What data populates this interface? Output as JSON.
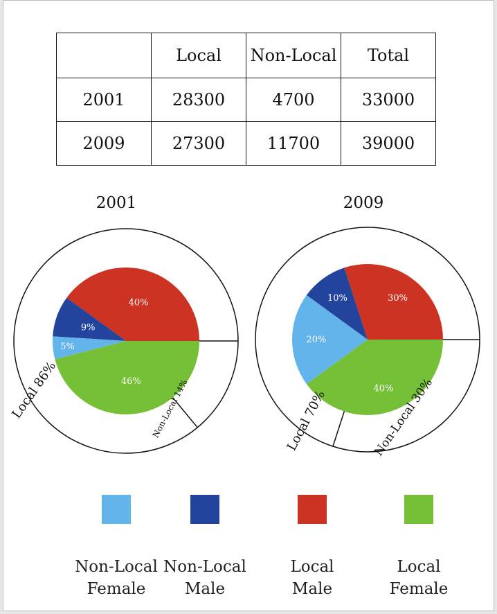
{
  "table": {
    "headers": [
      "",
      "Local",
      "Non-Local",
      "Total"
    ],
    "rows": [
      {
        "year": "2001",
        "local": "28300",
        "non_local": "4700",
        "total": "33000"
      },
      {
        "year": "2009",
        "local": "27300",
        "non_local": "11700",
        "total": "39000"
      }
    ]
  },
  "chart_data": [
    {
      "type": "pie",
      "title": "2001",
      "slices": [
        {
          "label": "40%",
          "category": "Local Male",
          "value": 40,
          "color": "#cc3322"
        },
        {
          "label": "9%",
          "category": "Non-Local Male",
          "value": 9,
          "color": "#22449c"
        },
        {
          "label": "5%",
          "category": "Non-Local Female",
          "value": 5,
          "color": "#62b4ea"
        },
        {
          "label": "46%",
          "category": "Local Female",
          "value": 46,
          "color": "#76c038"
        }
      ],
      "groups": [
        {
          "label": "Local 86%",
          "value": 86
        },
        {
          "label": "Non-Local 14%",
          "value": 14
        }
      ]
    },
    {
      "type": "pie",
      "title": "2009",
      "slices": [
        {
          "label": "30%",
          "category": "Local Male",
          "value": 30,
          "color": "#cc3322"
        },
        {
          "label": "10%",
          "category": "Non-Local Male",
          "value": 10,
          "color": "#22449c"
        },
        {
          "label": "20%",
          "category": "Non-Local Female",
          "value": 20,
          "color": "#62b4ea"
        },
        {
          "label": "40%",
          "category": "Local Female",
          "value": 40,
          "color": "#76c038"
        }
      ],
      "groups": [
        {
          "label": "Local 70%",
          "value": 70
        },
        {
          "label": "Non-Local 30%",
          "value": 30
        }
      ]
    }
  ],
  "legend": [
    {
      "line1": "Non-Local",
      "line2": "Female",
      "color": "#62b4ea"
    },
    {
      "line1": "Non-Local",
      "line2": "Male",
      "color": "#22449c"
    },
    {
      "line1": "Local",
      "line2": "Male",
      "color": "#cc3322"
    },
    {
      "line1": "Local",
      "line2": "Female",
      "color": "#76c038"
    }
  ]
}
